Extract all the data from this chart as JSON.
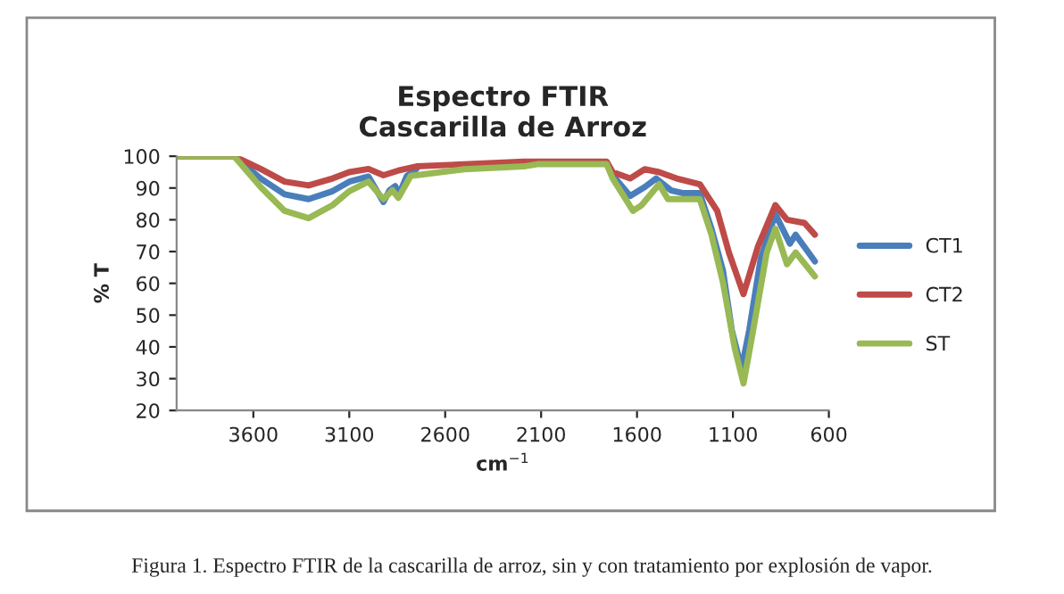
{
  "chart_data": {
    "type": "line",
    "title": "Espectro FTIR\nCascarilla de Arroz",
    "xlabel": "cm$^{−1}$",
    "ylabel": "% T",
    "xlim": [
      4000,
      600
    ],
    "xticks": [
      3600,
      3100,
      2600,
      2100,
      1600,
      1100,
      600
    ],
    "ylim": [
      20,
      100
    ],
    "yticks": [
      20,
      30,
      40,
      50,
      60,
      70,
      80,
      90,
      100
    ],
    "grid": false,
    "legend": "right",
    "marker": "none",
    "line_style": "solid",
    "annotations": [
      "Figura 1. Espectro FTIR de la cascarilla de arroz, sin y con tratamiento por explosión de vapor."
    ],
    "series": [
      {
        "name": "CT1",
        "color": "#4a7ebb",
        "x": [
          4000,
          3700,
          3562,
          3437,
          3312,
          3187,
          3100,
          3000,
          2922,
          2890,
          2860,
          2844,
          2800,
          2750,
          2190,
          2120,
          1758,
          1727,
          1636,
          1560,
          1500,
          1424,
          1364,
          1273,
          1212,
          1152,
          1106,
          1055,
          1015,
          955,
          879,
          803,
          773,
          673
        ],
        "values": [
          100,
          100,
          93,
          88,
          86.5,
          89,
          92,
          93.6,
          85.6,
          89.3,
          90.6,
          87.5,
          93.8,
          96,
          null,
          null,
          null,
          94,
          87.5,
          90.3,
          93,
          89.3,
          88.4,
          88.4,
          77.2,
          64,
          45.3,
          33.1,
          45.3,
          67.8,
          81.8,
          72.5,
          75.3,
          66.9
        ]
      },
      {
        "name": "CT2",
        "color": "#be4b48",
        "x": [
          4000,
          3700,
          3562,
          3437,
          3312,
          3187,
          3100,
          3000,
          2922,
          2844,
          2750,
          2190,
          2120,
          1758,
          1727,
          1636,
          1560,
          1485,
          1394,
          1273,
          1182,
          1121,
          1045,
          970,
          879,
          818,
          727,
          673
        ],
        "values": [
          100,
          100,
          96,
          92,
          90.8,
          93,
          95,
          96,
          94,
          95.5,
          96.8,
          98.3,
          98.3,
          98.3,
          95,
          93,
          95.9,
          95,
          93,
          91.2,
          82.8,
          69.7,
          56.6,
          71.5,
          84.6,
          80,
          79,
          75.3
        ]
      },
      {
        "name": "ST",
        "color": "#98b954",
        "x": [
          4000,
          3700,
          3562,
          3437,
          3312,
          3187,
          3100,
          3000,
          2922,
          2875,
          2844,
          2780,
          2500,
          2190,
          2120,
          1758,
          1727,
          1621,
          1576,
          1485,
          1439,
          1273,
          1212,
          1152,
          1091,
          1045,
          1000,
          924,
          879,
          818,
          773,
          673
        ],
        "values": [
          100,
          100,
          90.3,
          82.8,
          80.5,
          84.6,
          89,
          92,
          86.5,
          89.3,
          86.9,
          93.8,
          95.9,
          96.8,
          97.5,
          97.5,
          93,
          82.8,
          84.6,
          91.2,
          86.5,
          86.5,
          75.3,
          60.3,
          39.7,
          28.5,
          43.4,
          69.7,
          77.2,
          66,
          69.7,
          62.2
        ]
      }
    ]
  }
}
